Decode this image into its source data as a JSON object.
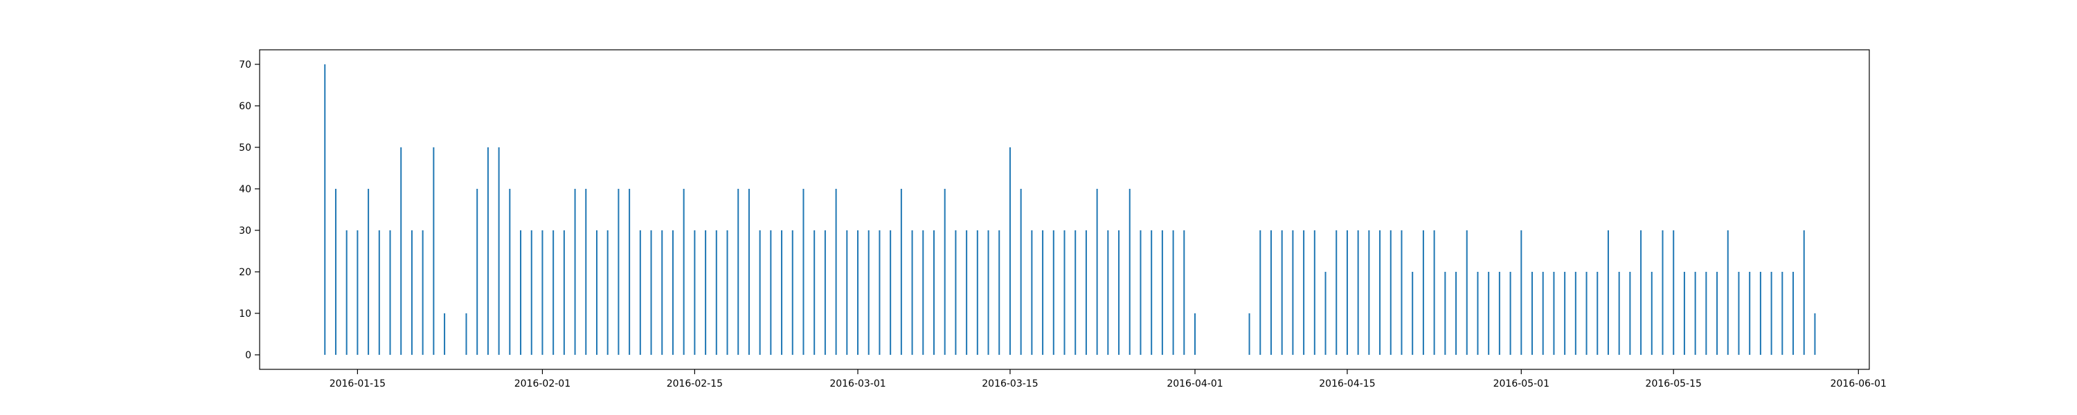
{
  "chart_data": {
    "type": "line",
    "title": "",
    "xlabel": "",
    "ylabel": "",
    "x_axis_type": "date",
    "xlim": [
      "2016-01-06",
      "2016-06-02"
    ],
    "ylim": [
      -3.5,
      73.5
    ],
    "yticks": [
      0,
      10,
      20,
      30,
      40,
      50,
      60,
      70
    ],
    "xticks": [
      "2016-01-15",
      "2016-02-01",
      "2016-02-15",
      "2016-03-01",
      "2016-03-15",
      "2016-04-01",
      "2016-04-15",
      "2016-05-01",
      "2016-05-15",
      "2016-06-01"
    ],
    "grid": false,
    "legend": "none",
    "series_color": "#1f77b4",
    "series": [
      {
        "x": [
          "2016-01-12",
          "2016-01-13",
          "2016-01-14",
          "2016-01-15",
          "2016-01-16",
          "2016-01-17",
          "2016-01-18",
          "2016-01-19",
          "2016-01-20",
          "2016-01-21",
          "2016-01-22",
          "2016-01-23",
          "2016-01-24",
          "2016-01-25",
          "2016-01-26",
          "2016-01-27",
          "2016-01-28",
          "2016-01-29",
          "2016-01-30",
          "2016-01-31",
          "2016-02-01",
          "2016-02-02",
          "2016-02-03",
          "2016-02-04",
          "2016-02-05",
          "2016-02-06",
          "2016-02-07",
          "2016-02-08",
          "2016-02-09",
          "2016-02-10",
          "2016-02-11",
          "2016-02-12",
          "2016-02-13",
          "2016-02-14",
          "2016-02-15",
          "2016-02-16",
          "2016-02-17",
          "2016-02-18",
          "2016-02-19",
          "2016-02-20",
          "2016-02-21",
          "2016-02-22",
          "2016-02-23",
          "2016-02-24",
          "2016-02-25",
          "2016-02-26",
          "2016-02-27",
          "2016-02-28",
          "2016-02-29",
          "2016-03-01",
          "2016-03-02",
          "2016-03-03",
          "2016-03-04",
          "2016-03-05",
          "2016-03-06",
          "2016-03-07",
          "2016-03-08",
          "2016-03-09",
          "2016-03-10",
          "2016-03-11",
          "2016-03-12",
          "2016-03-13",
          "2016-03-14",
          "2016-03-15",
          "2016-03-16",
          "2016-03-17",
          "2016-03-18",
          "2016-03-19",
          "2016-03-20",
          "2016-03-21",
          "2016-03-22",
          "2016-03-23",
          "2016-03-24",
          "2016-03-25",
          "2016-03-26",
          "2016-03-27",
          "2016-03-28",
          "2016-03-29",
          "2016-03-30",
          "2016-03-31",
          "2016-04-01",
          "2016-04-02",
          "2016-04-03",
          "2016-04-04",
          "2016-04-05",
          "2016-04-06",
          "2016-04-07",
          "2016-04-08",
          "2016-04-09",
          "2016-04-10",
          "2016-04-11",
          "2016-04-12",
          "2016-04-13",
          "2016-04-14",
          "2016-04-15",
          "2016-04-16",
          "2016-04-17",
          "2016-04-18",
          "2016-04-19",
          "2016-04-20",
          "2016-04-21",
          "2016-04-22",
          "2016-04-23",
          "2016-04-24",
          "2016-04-25",
          "2016-04-26",
          "2016-04-27",
          "2016-04-28",
          "2016-04-29",
          "2016-04-30",
          "2016-05-01",
          "2016-05-02",
          "2016-05-03",
          "2016-05-04",
          "2016-05-05",
          "2016-05-06",
          "2016-05-07",
          "2016-05-08",
          "2016-05-09",
          "2016-05-10",
          "2016-05-11",
          "2016-05-12",
          "2016-05-13",
          "2016-05-14",
          "2016-05-15",
          "2016-05-16",
          "2016-05-17",
          "2016-05-18",
          "2016-05-19",
          "2016-05-20",
          "2016-05-21",
          "2016-05-22",
          "2016-05-23",
          "2016-05-24",
          "2016-05-25",
          "2016-05-26",
          "2016-05-27",
          "2016-05-28"
        ],
        "y": [
          70,
          40,
          30,
          30,
          40,
          30,
          30,
          50,
          30,
          30,
          50,
          10,
          0,
          10,
          40,
          50,
          50,
          40,
          30,
          30,
          30,
          30,
          30,
          40,
          40,
          30,
          30,
          40,
          40,
          30,
          30,
          30,
          30,
          40,
          30,
          30,
          30,
          30,
          40,
          40,
          30,
          30,
          30,
          30,
          40,
          30,
          30,
          40,
          30,
          30,
          30,
          30,
          30,
          40,
          30,
          30,
          30,
          40,
          30,
          30,
          30,
          30,
          30,
          50,
          40,
          30,
          30,
          30,
          30,
          30,
          30,
          40,
          30,
          30,
          40,
          30,
          30,
          30,
          30,
          30,
          10,
          0,
          0,
          0,
          0,
          10,
          30,
          30,
          30,
          30,
          30,
          30,
          20,
          30,
          30,
          30,
          30,
          30,
          30,
          30,
          20,
          30,
          30,
          20,
          20,
          30,
          20,
          20,
          20,
          20,
          30,
          20,
          20,
          20,
          20,
          20,
          20,
          20,
          30,
          20,
          20,
          30,
          20,
          30,
          30,
          20,
          20,
          20,
          20,
          30,
          20,
          20,
          20,
          20,
          20,
          20,
          30,
          10
        ]
      }
    ]
  }
}
